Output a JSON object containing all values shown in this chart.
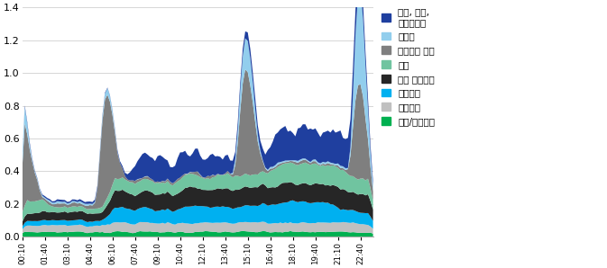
{
  "labels": [
    "세탁, 건조,\n식기세척기",
    "온수기",
    "스페이스 히터",
    "조명",
    "일반 전기제품",
    "요리기기",
    "전자기기",
    "냉장/냉동기기"
  ],
  "colors": [
    "#1F3F9F",
    "#92CEED",
    "#7F7F7F",
    "#70C4A0",
    "#262626",
    "#00B0F0",
    "#C0C0C0",
    "#00B050"
  ],
  "ylim": [
    0,
    1.4
  ],
  "yticks": [
    0.0,
    0.2,
    0.4,
    0.6,
    0.8,
    1.0,
    1.2,
    1.4
  ],
  "figsize": [
    6.73,
    2.98
  ],
  "dpi": 100
}
